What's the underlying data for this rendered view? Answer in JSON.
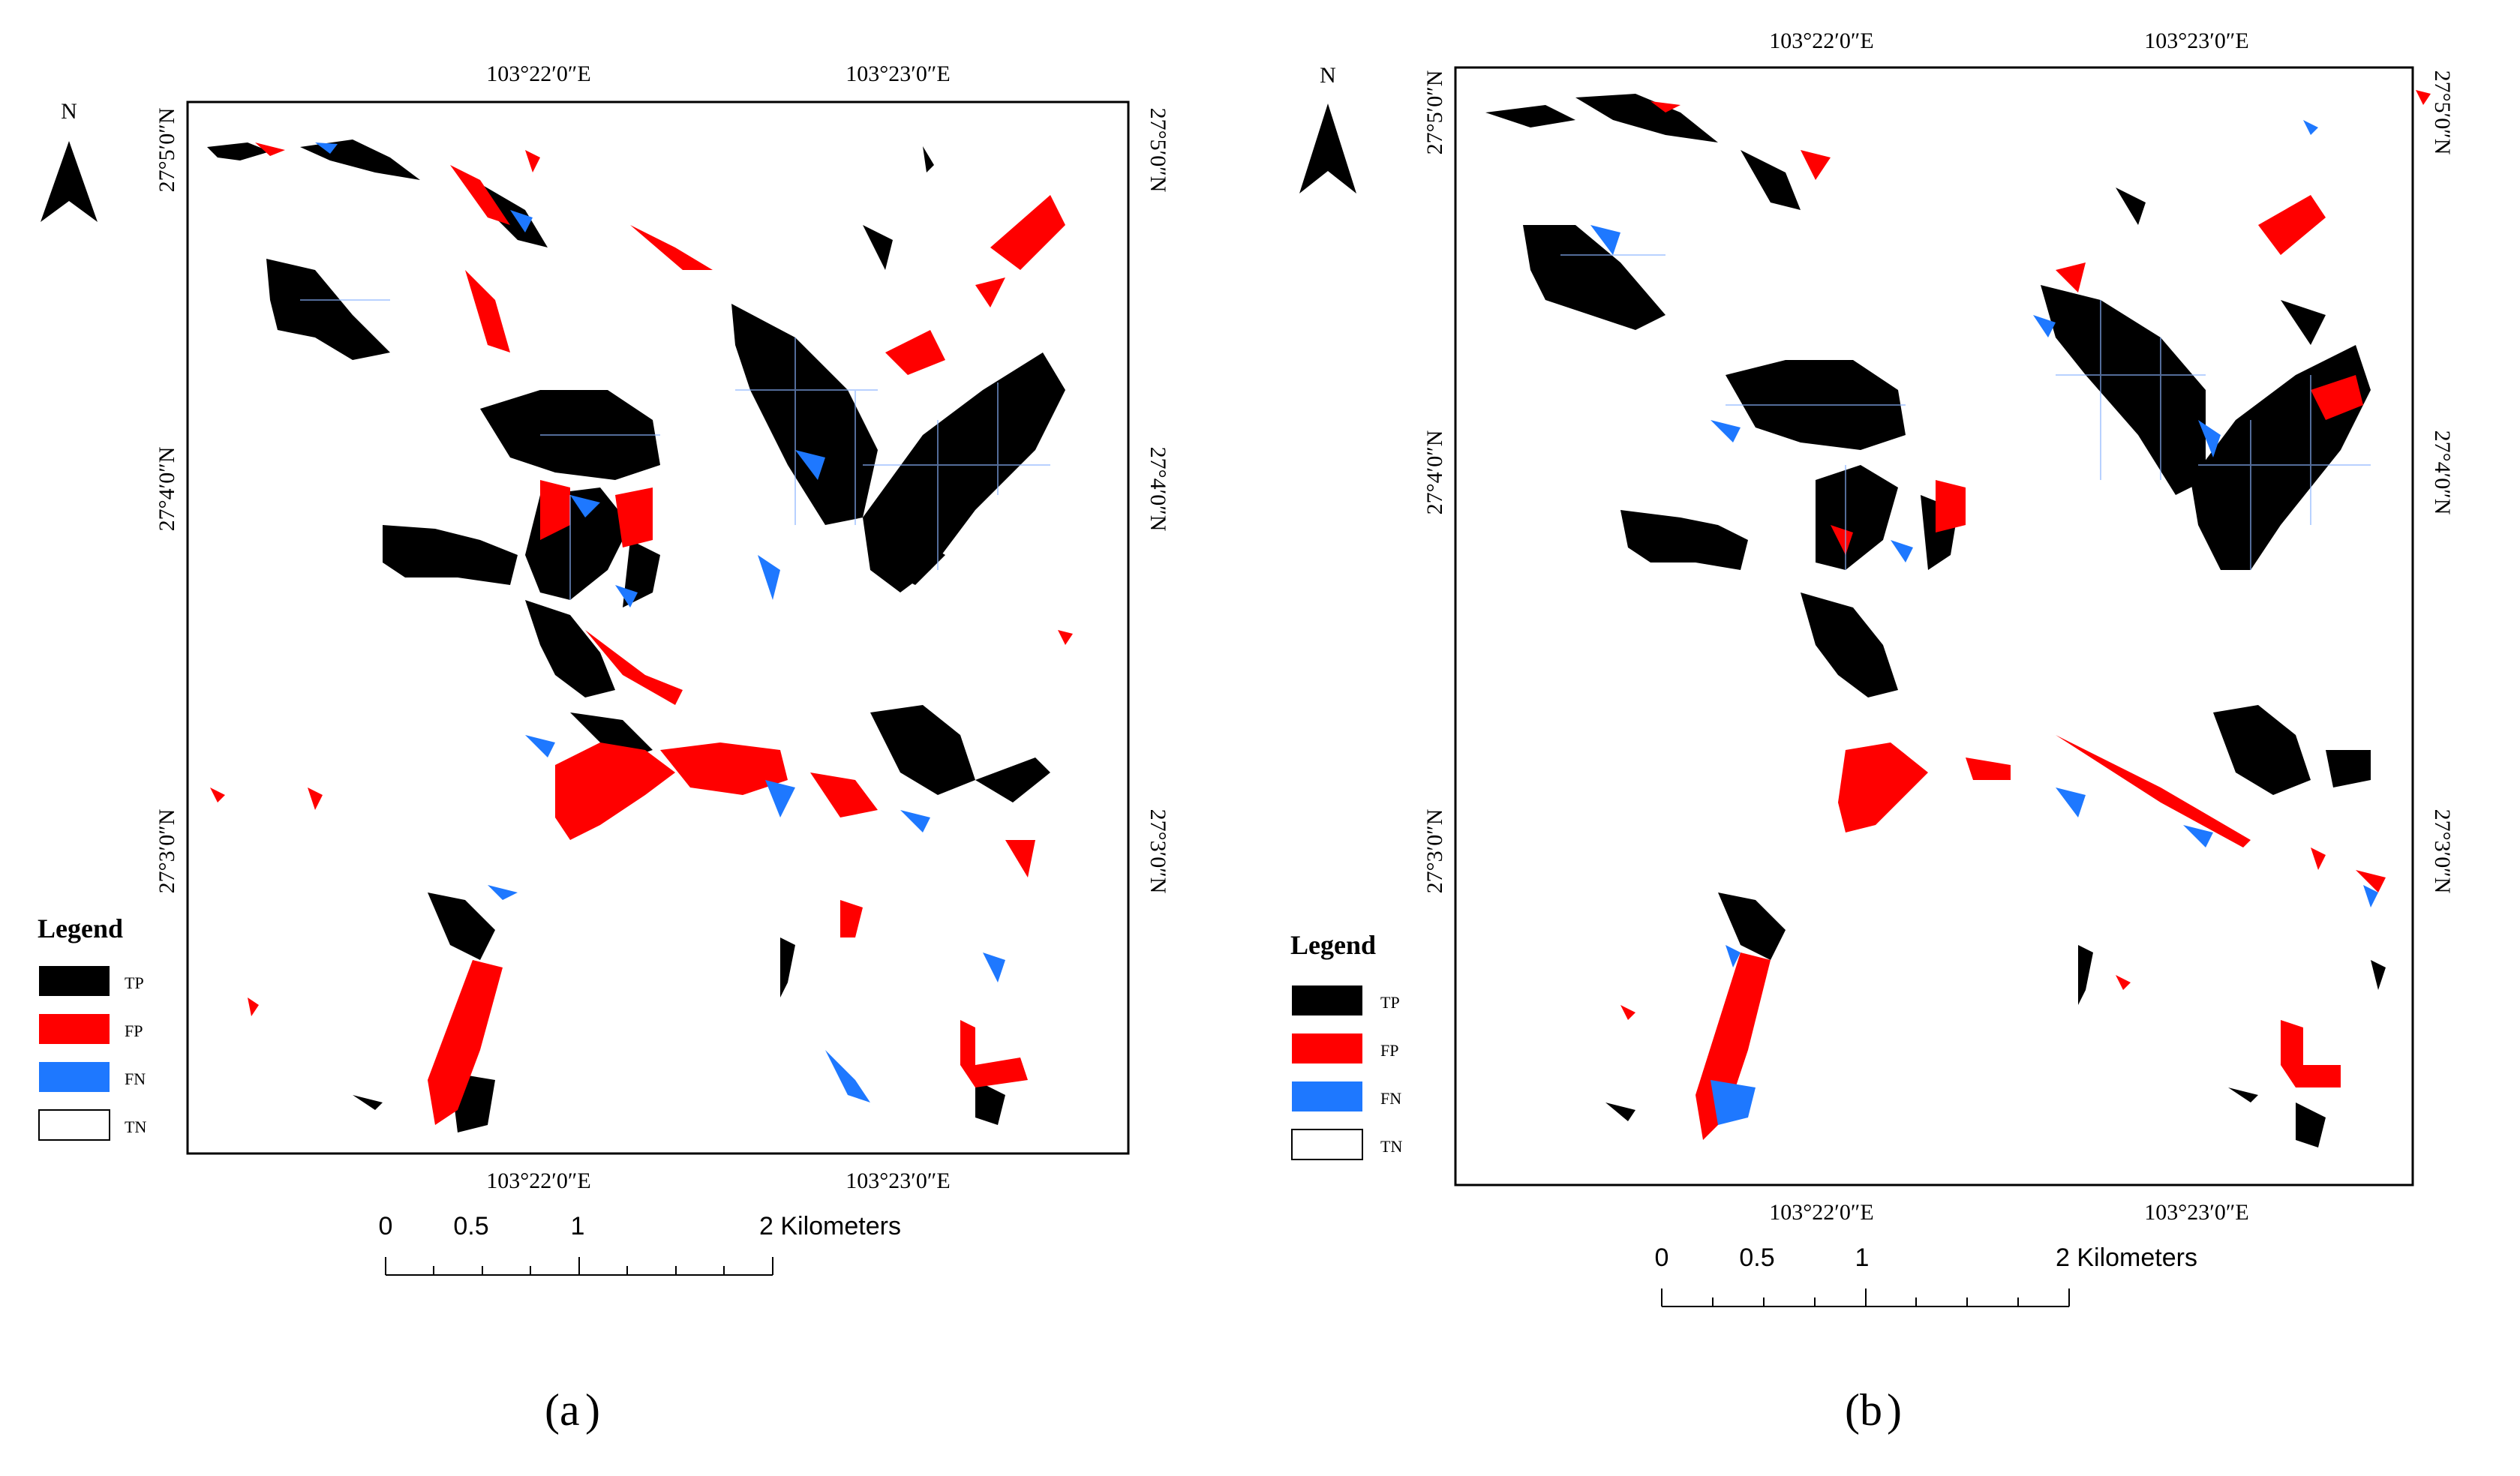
{
  "panels": [
    {
      "id": "a",
      "caption_letter": "a",
      "north_label": "N",
      "top_lon_labels": [
        "103°22′0″E",
        "103°23′0″E"
      ],
      "bottom_lon_labels": [
        "103°22′0″E",
        "103°23′0″E"
      ],
      "lat_labels": [
        "27°5′0″N",
        "27°4′0″N",
        "27°3′0″N"
      ],
      "legend_title": "Legend",
      "legend_items": [
        "TP",
        "FP",
        "FN",
        "TN"
      ],
      "scale_labels": [
        "0",
        "0.5",
        "1",
        "2 Kilometers"
      ]
    },
    {
      "id": "b",
      "caption_letter": "b",
      "north_label": "N",
      "top_lon_labels": [
        "103°22′0″E",
        "103°23′0″E"
      ],
      "bottom_lon_labels": [
        "103°22′0″E",
        "103°23′0″E"
      ],
      "lat_labels": [
        "27°5′0″N",
        "27°4′0″N",
        "27°3′0″N"
      ],
      "legend_title": "Legend",
      "legend_items": [
        "TP",
        "FP",
        "FN",
        "TN"
      ],
      "scale_labels": [
        "0",
        "0.5",
        "1",
        "2 Kilometers"
      ]
    }
  ],
  "colors": {
    "TP": "#000000",
    "FP": "#ff0000",
    "FN": "#1e78ff",
    "TN": "#ffffff"
  }
}
